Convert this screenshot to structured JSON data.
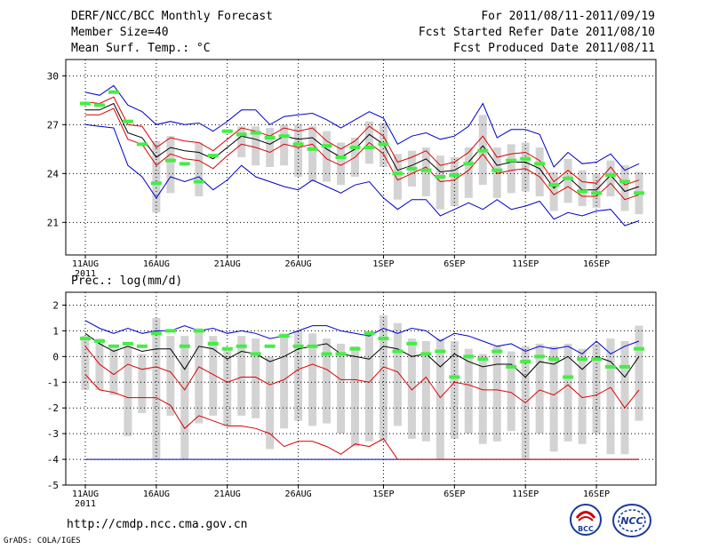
{
  "header": {
    "title": "DERF/NCC/BCC Monthly Forecast",
    "member_size": "Member Size=40",
    "variable": "Mean Surf. Temp.: °C",
    "fcst_period": "For 2011/08/11-2011/09/19",
    "fcst_started": "Fcst Started Refer Date 2011/08/10",
    "fcst_produced": "Fcst Produced Date 2011/08/11"
  },
  "footer": {
    "url": "http://cmdp.ncc.cma.gov.cn",
    "grads": "GrADS: COLA/IGES",
    "logo_bcc_text": "BCC",
    "logo_ncc_text": "NCC"
  },
  "colors": {
    "box": "#d3d3d3",
    "max_line": "#0000cc",
    "upper_line": "#dd0000",
    "mean_line": "#000000",
    "obs": "#44ee44",
    "grid": "#000000"
  },
  "chart_data": [
    {
      "type": "line",
      "title": "Mean Surf. Temp.: °C",
      "x_tick_labels": [
        "11AUG",
        "16AUG",
        "21AUG",
        "26AUG",
        "1SEP",
        "6SEP",
        "11SEP",
        "16SEP"
      ],
      "x_tick_days": [
        1,
        6,
        11,
        16,
        22,
        27,
        32,
        37
      ],
      "x_year_label": "2011",
      "y_ticks": [
        21,
        24,
        27,
        30
      ],
      "ylim": [
        19,
        31
      ],
      "days": 40,
      "series": {
        "max": [
          29.0,
          28.8,
          29.4,
          28.2,
          27.8,
          27.0,
          27.2,
          27.0,
          27.1,
          26.6,
          27.2,
          27.9,
          27.9,
          27.0,
          27.5,
          27.6,
          27.7,
          27.3,
          26.8,
          27.3,
          27.8,
          27.4,
          25.8,
          26.3,
          26.5,
          26.1,
          26.3,
          26.9,
          28.3,
          26.2,
          26.7,
          26.7,
          26.4,
          24.4,
          25.3,
          24.6,
          24.7,
          25.2,
          24.2,
          24.6
        ],
        "upper": [
          28.4,
          28.3,
          28.7,
          27.0,
          26.9,
          25.6,
          26.2,
          26.0,
          25.9,
          25.4,
          26.1,
          26.8,
          26.6,
          26.3,
          26.8,
          26.6,
          26.8,
          26.0,
          25.5,
          26.0,
          26.9,
          26.3,
          24.7,
          25.0,
          25.4,
          24.5,
          24.7,
          25.3,
          26.3,
          25.0,
          25.2,
          25.3,
          24.8,
          23.5,
          24.2,
          23.5,
          23.4,
          24.4,
          23.3,
          23.6
        ],
        "mean": [
          27.9,
          27.9,
          28.3,
          26.5,
          26.2,
          25.0,
          25.6,
          25.4,
          25.3,
          24.9,
          25.6,
          26.3,
          26.1,
          25.8,
          26.3,
          26.1,
          26.2,
          25.5,
          25.0,
          25.5,
          26.4,
          25.8,
          24.2,
          24.5,
          24.9,
          24.1,
          24.2,
          24.7,
          25.7,
          24.5,
          24.7,
          24.7,
          24.3,
          23.1,
          23.8,
          23.0,
          23.0,
          23.9,
          22.9,
          23.2
        ],
        "lower": [
          27.6,
          27.6,
          28.0,
          26.1,
          25.8,
          24.5,
          25.2,
          24.9,
          24.8,
          24.3,
          25.1,
          25.8,
          25.6,
          25.3,
          25.8,
          25.6,
          25.8,
          24.9,
          24.5,
          25.0,
          25.9,
          25.2,
          23.6,
          24.0,
          24.4,
          23.5,
          23.6,
          24.2,
          25.2,
          24.0,
          24.2,
          24.3,
          23.8,
          22.7,
          23.2,
          22.6,
          22.6,
          23.4,
          22.4,
          22.7
        ],
        "min": [
          27.0,
          26.9,
          26.8,
          24.5,
          23.8,
          22.5,
          23.8,
          23.5,
          23.8,
          23.0,
          23.6,
          24.5,
          23.8,
          23.5,
          23.2,
          23.0,
          23.6,
          23.2,
          22.8,
          23.3,
          23.5,
          22.5,
          21.8,
          22.4,
          22.4,
          21.4,
          21.8,
          22.2,
          21.8,
          22.4,
          21.8,
          22.0,
          22.3,
          21.2,
          21.6,
          21.4,
          21.7,
          21.8,
          20.8,
          21.1
        ],
        "box_low": [
          null,
          null,
          null,
          null,
          null,
          21.6,
          22.8,
          null,
          22.6,
          null,
          null,
          25.0,
          24.5,
          24.4,
          24.5,
          23.8,
          23.5,
          23.5,
          23.3,
          23.8,
          24.6,
          24.4,
          22.4,
          23.2,
          22.6,
          21.8,
          22.0,
          22.5,
          23.3,
          22.5,
          22.8,
          22.9,
          22.6,
          21.7,
          22.2,
          22.0,
          21.9,
          22.6,
          21.7,
          21.5
        ],
        "box_high": [
          null,
          null,
          null,
          null,
          null,
          26.0,
          26.3,
          null,
          25.9,
          null,
          null,
          26.9,
          26.9,
          26.8,
          27.0,
          27.0,
          26.9,
          26.6,
          25.9,
          26.2,
          27.2,
          27.1,
          25.2,
          25.4,
          25.6,
          25.1,
          25.0,
          25.6,
          27.6,
          25.6,
          25.8,
          25.9,
          25.6,
          24.1,
          24.9,
          24.2,
          24.0,
          24.8,
          24.5,
          24.1
        ],
        "obs": [
          28.3,
          28.2,
          29.0,
          27.2,
          25.8,
          23.4,
          24.8,
          24.6,
          23.5,
          25.1,
          26.6,
          26.4,
          26.5,
          26.2,
          26.3,
          25.8,
          25.5,
          25.7,
          25.0,
          25.6,
          25.6,
          25.8,
          24.0,
          24.3,
          24.2,
          23.8,
          23.9,
          24.6,
          25.4,
          24.2,
          24.8,
          24.9,
          24.6,
          23.3,
          23.7,
          22.9,
          22.8,
          23.9,
          23.5,
          22.8
        ]
      }
    },
    {
      "type": "line",
      "title": "Prec.: log(mm/d)",
      "x_tick_labels": [
        "11AUG",
        "16AUG",
        "21AUG",
        "26AUG",
        "1SEP",
        "6SEP",
        "11SEP",
        "16SEP"
      ],
      "x_tick_days": [
        1,
        6,
        11,
        16,
        22,
        27,
        32,
        37
      ],
      "x_year_label": "2011",
      "y_ticks": [
        -5,
        -4,
        -3,
        -2,
        -1,
        0,
        1,
        2
      ],
      "ylim": [
        -5,
        2.5
      ],
      "days": 40,
      "series": {
        "max": [
          1.4,
          1.1,
          0.9,
          1.1,
          0.9,
          1.0,
          1.0,
          1.2,
          1.0,
          1.1,
          0.9,
          1.0,
          0.9,
          0.7,
          0.8,
          1.0,
          1.2,
          1.2,
          1.0,
          0.9,
          0.8,
          1.1,
          0.9,
          1.1,
          1.0,
          0.6,
          0.9,
          0.8,
          0.6,
          0.4,
          0.5,
          0.2,
          0.4,
          0.3,
          0.4,
          0.1,
          0.6,
          0.1,
          0.4,
          0.6
        ],
        "mean": [
          0.9,
          0.5,
          0.2,
          0.4,
          0.2,
          0.3,
          0.3,
          -0.5,
          0.4,
          0.3,
          -0.1,
          0.2,
          0.1,
          -0.2,
          0.0,
          0.3,
          0.4,
          0.5,
          0.1,
          0.0,
          -0.1,
          0.4,
          0.3,
          0.0,
          0.1,
          -0.4,
          0.1,
          -0.2,
          -0.4,
          -0.3,
          -0.3,
          -0.8,
          -0.2,
          -0.3,
          0.0,
          -0.5,
          0.0,
          -0.2,
          -0.8,
          0.0
        ],
        "upper": [
          0.4,
          -0.3,
          -0.7,
          -0.3,
          -0.5,
          -0.4,
          -0.6,
          -1.3,
          -0.4,
          -0.7,
          -1.0,
          -0.8,
          -0.8,
          -1.1,
          -0.9,
          -0.5,
          -0.3,
          -0.5,
          -0.9,
          -0.9,
          -1.0,
          -0.4,
          -0.6,
          -1.3,
          -0.8,
          -1.6,
          -1.0,
          -1.1,
          -1.3,
          -1.3,
          -1.4,
          -1.8,
          -1.3,
          -1.5,
          -1.1,
          -1.6,
          -1.5,
          -1.2,
          -2.0,
          -1.3
        ],
        "lower": [
          -0.7,
          -1.3,
          -1.4,
          -1.6,
          -1.6,
          -1.6,
          -1.9,
          -2.8,
          -2.3,
          -2.5,
          -2.7,
          -2.7,
          -2.8,
          -3.0,
          -3.5,
          -3.3,
          -3.3,
          -3.5,
          -3.8,
          -3.4,
          -3.5,
          -3.2,
          -4.0,
          -4.0,
          -4.0,
          -4.0,
          -4.0,
          -4.0,
          -4.0,
          -4.0,
          -4.0,
          -4.0,
          -4.0,
          -4.0,
          -4.0,
          -4.0,
          -4.0,
          -4.0,
          -4.0,
          -4.0
        ],
        "min": [
          -4.0,
          -4.0,
          -4.0,
          -4.0,
          -4.0,
          -4.0,
          -4.0,
          -4.0,
          -4.0,
          -4.0,
          -4.0,
          -4.0,
          -4.0,
          -4.0,
          -4.0,
          -4.0,
          -4.0,
          -4.0,
          -4.0,
          -4.0,
          -4.0,
          -4.0,
          -4.0,
          -4.0,
          -4.0,
          -4.0,
          -4.0,
          -4.0,
          -4.0,
          -4.0,
          -4.0,
          -4.0,
          -4.0,
          -4.0,
          -4.0,
          -4.0,
          -4.0,
          -4.0,
          -4.0,
          -4.0
        ],
        "box_low": [
          -1.3,
          -1.3,
          -1.5,
          -3.1,
          -2.2,
          -4.0,
          -2.3,
          -4.0,
          -2.6,
          -2.3,
          -2.7,
          -2.3,
          -2.4,
          -3.6,
          -2.8,
          -2.5,
          -2.7,
          -2.6,
          -3.0,
          -3.5,
          -3.3,
          -3.3,
          -2.7,
          -3.2,
          -3.3,
          -4.0,
          -3.2,
          -3.0,
          -3.4,
          -3.3,
          -2.9,
          -4.0,
          -3.0,
          -3.7,
          -3.3,
          -3.4,
          -3.0,
          -3.8,
          -3.8,
          -2.5
        ],
        "box_high": [
          0.8,
          0.7,
          0.3,
          0.4,
          0.1,
          1.5,
          0.8,
          0.8,
          1.1,
          0.8,
          0.3,
          0.8,
          0.7,
          0.0,
          0.9,
          1.0,
          0.9,
          0.7,
          0.5,
          0.4,
          1.0,
          1.6,
          1.3,
          0.7,
          0.6,
          0.7,
          0.6,
          0.3,
          0.1,
          0.4,
          0.2,
          0.4,
          0.5,
          0.4,
          0.5,
          0.3,
          0.5,
          0.7,
          0.6,
          1.2
        ],
        "obs": [
          0.7,
          0.6,
          0.4,
          0.5,
          0.4,
          0.9,
          1.0,
          0.4,
          1.0,
          0.5,
          0.3,
          0.4,
          0.1,
          0.4,
          0.8,
          0.4,
          0.4,
          0.1,
          0.1,
          0.3,
          0.9,
          0.7,
          0.2,
          0.5,
          0.1,
          0.2,
          -0.8,
          0.0,
          -0.1,
          0.2,
          -0.4,
          -0.2,
          0.0,
          -0.1,
          -0.8,
          -0.1,
          -0.1,
          -0.4,
          -0.4,
          0.3
        ]
      }
    }
  ]
}
